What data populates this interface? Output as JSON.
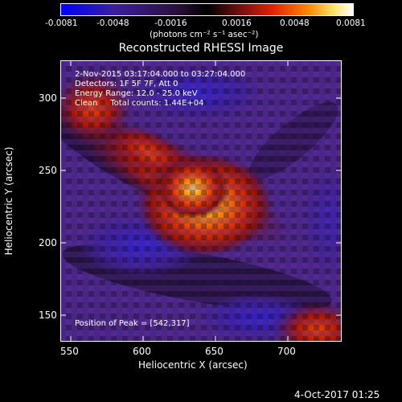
{
  "colorbar": {
    "tick_labels": [
      "-0.0081",
      "-0.0048",
      "-0.0016",
      "0.0016",
      "0.0048",
      "0.0081"
    ],
    "units_label": "(photons cm⁻² s⁻¹ asec⁻²)",
    "colors": [
      "#0000ff",
      "#3a1fa0",
      "#2b0f3a",
      "#000000",
      "#7a1010",
      "#e02000",
      "#ff8000",
      "#ffe060",
      "#ffffff"
    ]
  },
  "image": {
    "title": "Reconstructed RHESSI Image",
    "info_lines": [
      "2-Nov-2015 03:17:04.000 to 03:27:04.000",
      "Detectors: 1F 5F 7F, Att 0",
      "Energy Range: 12.0 - 25.0 keV",
      "Clean     Total counts: 1.44E+04"
    ],
    "peak_label": "Position of Peak = [542,317]",
    "xlabel": "Heliocentric X (arcsec)",
    "ylabel": "Heliocentric Y (arcsec)",
    "x_ticks": [
      "550",
      "600",
      "650",
      "700"
    ],
    "y_ticks": [
      "150",
      "200",
      "250",
      "300"
    ]
  },
  "footer": {
    "date": "4-Oct-2017 01:25"
  }
}
